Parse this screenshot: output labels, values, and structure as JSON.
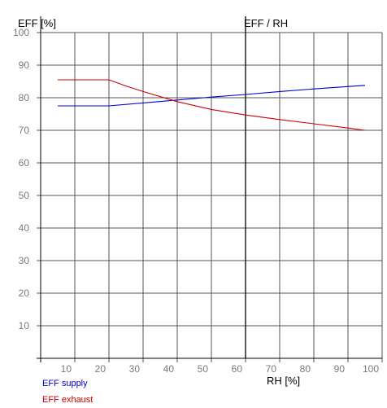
{
  "chart_data": {
    "type": "line",
    "title": "EFF / RH",
    "ylabel": "EFF [%]",
    "xlabel": "RH [%]",
    "xlim": [
      0,
      100
    ],
    "ylim": [
      0,
      100
    ],
    "x_ticks": [
      10,
      20,
      30,
      40,
      50,
      60,
      70,
      80,
      90,
      100
    ],
    "y_ticks": [
      10,
      20,
      30,
      40,
      50,
      60,
      70,
      80,
      90,
      100
    ],
    "grid": true,
    "marker_line_x": 60,
    "series": [
      {
        "name": "EFF supply",
        "color": "#0000cc",
        "points": [
          [
            5,
            77.5
          ],
          [
            20,
            77.5
          ],
          [
            30,
            78.4
          ],
          [
            40,
            79.3
          ],
          [
            50,
            80.2
          ],
          [
            60,
            81.0
          ],
          [
            70,
            81.9
          ],
          [
            80,
            82.7
          ],
          [
            95,
            83.8
          ]
        ]
      },
      {
        "name": "EFF exhaust",
        "color": "#cc0000",
        "points": [
          [
            5,
            85.5
          ],
          [
            20,
            85.5
          ],
          [
            25,
            83.6
          ],
          [
            30,
            81.9
          ],
          [
            40,
            78.8
          ],
          [
            50,
            76.4
          ],
          [
            60,
            74.7
          ],
          [
            70,
            73.3
          ],
          [
            80,
            72.0
          ],
          [
            90,
            70.7
          ],
          [
            95,
            70.0
          ]
        ]
      }
    ]
  }
}
